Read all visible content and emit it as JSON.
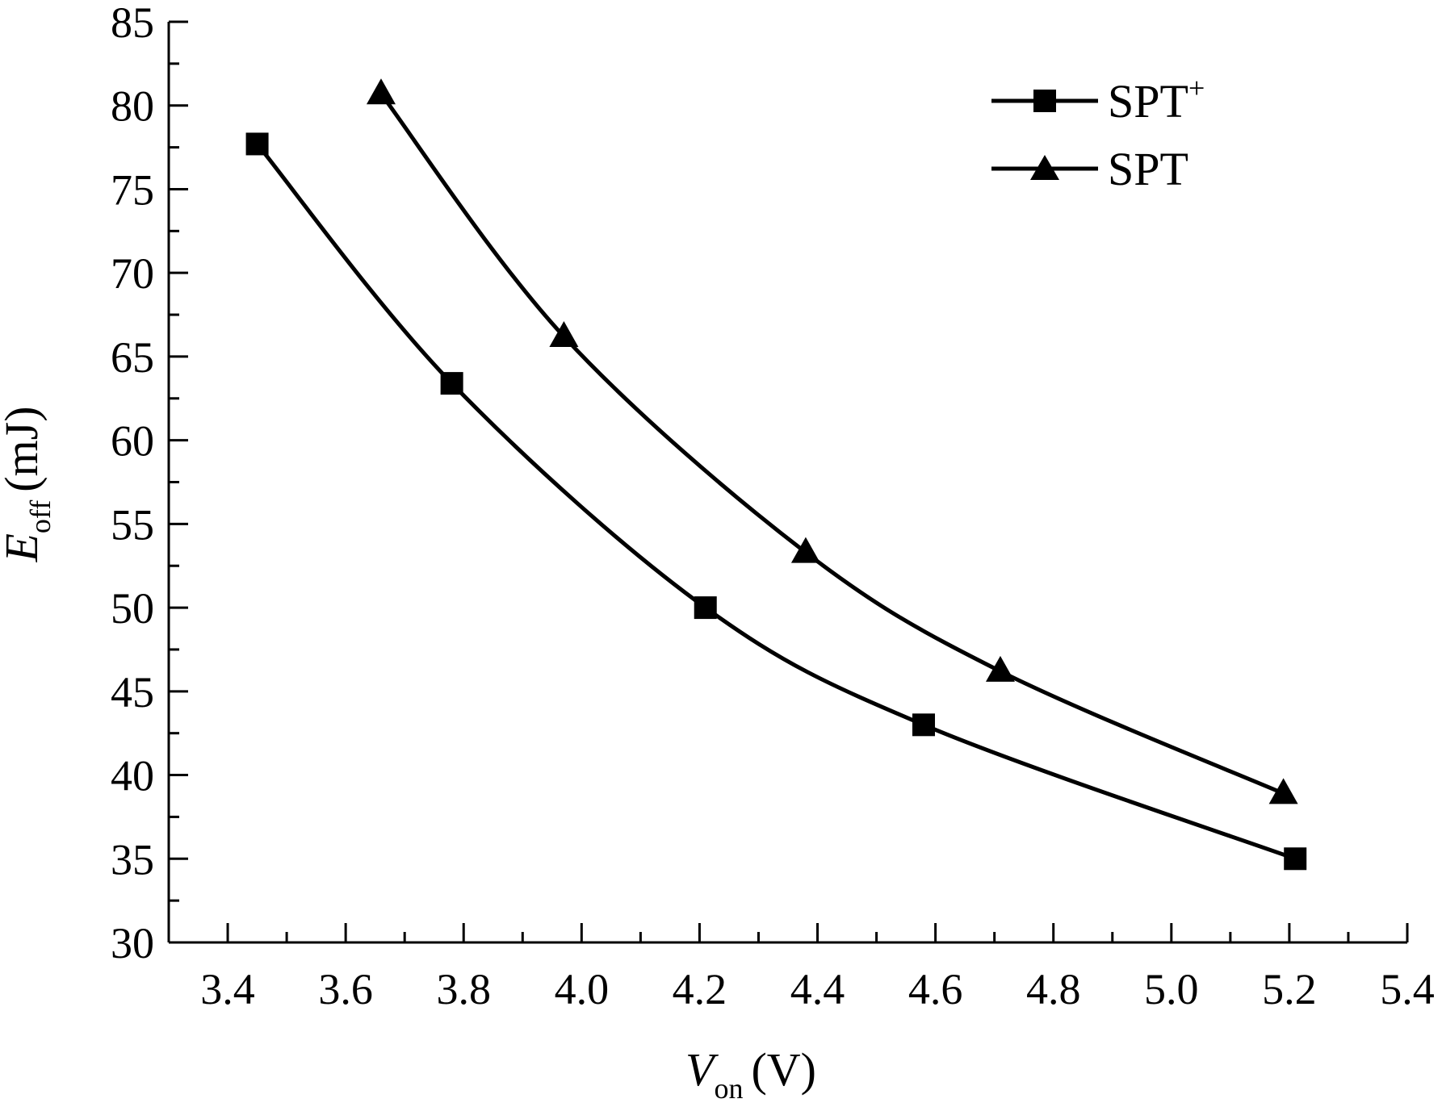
{
  "chart_data": {
    "type": "line",
    "xlabel": {
      "main": "V",
      "sub": "on",
      "unit": "(V)"
    },
    "ylabel": {
      "main": "E",
      "sub": "off",
      "unit": "(mJ)"
    },
    "xlim": [
      3.3,
      5.4
    ],
    "ylim": [
      30,
      85
    ],
    "x_ticks": [
      "3.4",
      "3.6",
      "3.8",
      "4.0",
      "4.2",
      "4.4",
      "4.6",
      "4.8",
      "5.0",
      "5.2",
      "5.4"
    ],
    "y_ticks": [
      "30",
      "35",
      "40",
      "45",
      "50",
      "55",
      "60",
      "65",
      "70",
      "75",
      "80",
      "85"
    ],
    "grid": false,
    "legend_position": "top-right",
    "series": [
      {
        "name": "SPT",
        "name_sup": "+",
        "marker": "square",
        "x": [
          3.45,
          3.78,
          4.21,
          4.58,
          5.21
        ],
        "y": [
          77.7,
          63.4,
          50.0,
          43.0,
          35.0
        ]
      },
      {
        "name": "SPT",
        "name_sup": "",
        "marker": "triangle",
        "x": [
          3.66,
          3.97,
          4.38,
          4.71,
          5.19
        ],
        "y": [
          80.7,
          66.2,
          53.3,
          46.2,
          38.9
        ]
      }
    ],
    "colors": {
      "line": "#000000",
      "background": "#ffffff"
    }
  }
}
